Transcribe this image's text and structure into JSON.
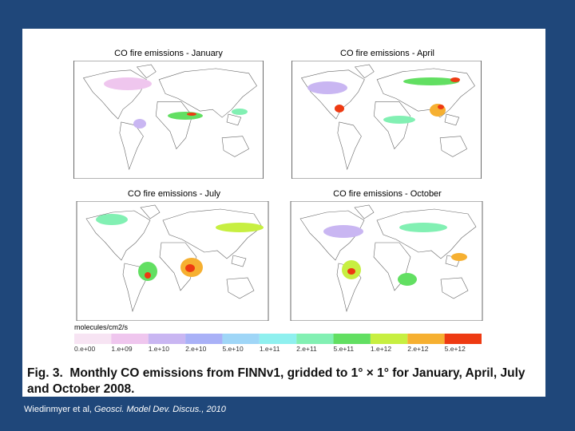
{
  "panels": [
    {
      "title": "CO fire emissions - January"
    },
    {
      "title": "CO fire emissions - April"
    },
    {
      "title": "CO fire emissions - July"
    },
    {
      "title": "CO fire emissions - October"
    }
  ],
  "legend": {
    "label": "molecules/cm2/s",
    "ticks": [
      "0.e+00",
      "1.e+09",
      "1.e+10",
      "2.e+10",
      "5.e+10",
      "1.e+11",
      "2.e+11",
      "5.e+11",
      "1.e+12",
      "2.e+12",
      "5.e+12"
    ],
    "colors": [
      "#f7e4f3",
      "#efc6ee",
      "#c9b6f2",
      "#a9b1f7",
      "#9fd6f7",
      "#8ff0ef",
      "#82f0b3",
      "#62df62",
      "#c7ef41",
      "#f6b031",
      "#ee3a12"
    ]
  },
  "caption": {
    "label": "Fig. 3.",
    "text": "Monthly CO emissions from FINNv1, gridded to 1° × 1° for January, April, July and October 2008."
  },
  "citation": {
    "authors": "Wiedinmyer et al,",
    "source": "Geosci. Model Dev. Discus., 2010"
  }
}
